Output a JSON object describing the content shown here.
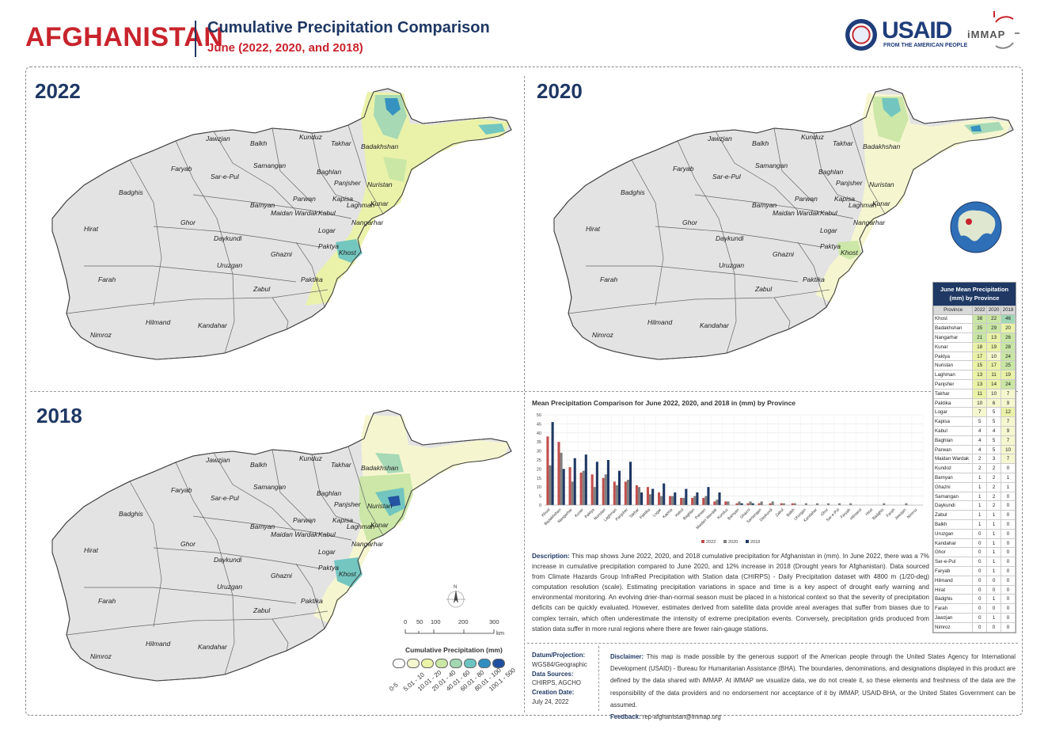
{
  "header": {
    "country": "AFGHANISTAN",
    "title": "Cumulative Precipitation Comparison",
    "subtitle": "June (2022, 2020, and 2018)"
  },
  "logos": {
    "usaid": "USAID",
    "usaid_tagline": "FROM THE AMERICAN PEOPLE",
    "immap": "iMMAP"
  },
  "maps": {
    "year_a": "2022",
    "year_b": "2020",
    "year_c": "2018"
  },
  "provinces": [
    "Jawzjan",
    "Balkh",
    "Kunduz",
    "Takhar",
    "Badakhshan",
    "Faryab",
    "Samangan",
    "Baghlan",
    "Sar-e-Pul",
    "Panjsher",
    "Nuristan",
    "Badghis",
    "Bamyan",
    "Parwan",
    "Kapisa",
    "Kunar",
    "Maidan Wardak",
    "Kabul",
    "Laghman",
    "Hirat",
    "Ghor",
    "Nangarhar",
    "Logar",
    "Daykundi",
    "Paktya",
    "Khost",
    "Ghazni",
    "Uruzgan",
    "Paktika",
    "Farah",
    "Zabul",
    "Hilmand",
    "Kandahar",
    "Nimroz"
  ],
  "table": {
    "title": "June Mean Precipitation (mm) by Province",
    "columns": [
      "Province",
      "2022",
      "2020",
      "2018"
    ],
    "rows": [
      [
        "Khost",
        38,
        22,
        46
      ],
      [
        "Badakhshan",
        35,
        29,
        20
      ],
      [
        "Nangarhar",
        21,
        13,
        26
      ],
      [
        "Kunar",
        18,
        19,
        28
      ],
      [
        "Paktya",
        17,
        10,
        24
      ],
      [
        "Nuristan",
        15,
        17,
        25
      ],
      [
        "Laghman",
        13,
        11,
        19
      ],
      [
        "Panjsher",
        13,
        14,
        24
      ],
      [
        "Takhar",
        11,
        10,
        7
      ],
      [
        "Paktika",
        10,
        6,
        9
      ],
      [
        "Logar",
        7,
        5,
        12
      ],
      [
        "Kapisa",
        5,
        5,
        7
      ],
      [
        "Kabul",
        4,
        4,
        9
      ],
      [
        "Baghlan",
        4,
        5,
        7
      ],
      [
        "Parwan",
        4,
        5,
        10
      ],
      [
        "Maidan Wardak",
        2,
        3,
        7
      ],
      [
        "Kundoz",
        2,
        2,
        0
      ],
      [
        "Bamyan",
        1,
        2,
        1
      ],
      [
        "Ghazni",
        1,
        2,
        1
      ],
      [
        "Samangan",
        1,
        2,
        0
      ],
      [
        "Daykundi",
        1,
        2,
        0
      ],
      [
        "Zabul",
        1,
        1,
        0
      ],
      [
        "Balkh",
        1,
        1,
        0
      ],
      [
        "Uruzgan",
        0,
        1,
        0
      ],
      [
        "Kandahar",
        0,
        1,
        0
      ],
      [
        "Ghor",
        0,
        1,
        0
      ],
      [
        "Sar-e-Pul",
        0,
        1,
        0
      ],
      [
        "Faryab",
        0,
        1,
        0
      ],
      [
        "Hilmand",
        0,
        0,
        0
      ],
      [
        "Hirat",
        0,
        0,
        0
      ],
      [
        "Badghis",
        0,
        1,
        0
      ],
      [
        "Farah",
        0,
        0,
        0
      ],
      [
        "Jawzjan",
        0,
        1,
        0
      ],
      [
        "Nimroz",
        0,
        0,
        0
      ]
    ]
  },
  "chart_data": {
    "type": "bar",
    "title": "Mean Precipitation Comparison for June 2022, 2020, and 2018 in (mm) by Province",
    "categories": [
      "Khost",
      "Badakhshan",
      "Nangarhar",
      "Kunar",
      "Paktya",
      "Nuristan",
      "Laghman",
      "Panjsher",
      "Takhar",
      "Paktika",
      "Logar",
      "Kapisa",
      "Kabul",
      "Baghlan",
      "Parwan",
      "Maidan Wardak",
      "Kunduz",
      "Bamyan",
      "Ghazni",
      "Samangan",
      "Daykundi",
      "Zabul",
      "Balkh",
      "Uruzgan",
      "Kandahar",
      "Ghor",
      "Sar-e-Pul",
      "Faryab",
      "Hilmand",
      "Hirat",
      "Badghis",
      "Farah",
      "Jawzjan",
      "Nimroz"
    ],
    "series": [
      {
        "name": "2022",
        "color": "#c0504d",
        "values": [
          38,
          35,
          21,
          18,
          17,
          15,
          13,
          13,
          11,
          10,
          7,
          5,
          4,
          4,
          4,
          2,
          2,
          1,
          1,
          1,
          1,
          1,
          1,
          0,
          0,
          0,
          0,
          0,
          0,
          0,
          0,
          0,
          0,
          0
        ]
      },
      {
        "name": "2020",
        "color": "#808080",
        "values": [
          22,
          29,
          13,
          19,
          10,
          17,
          11,
          14,
          10,
          6,
          5,
          5,
          4,
          5,
          5,
          3,
          2,
          2,
          2,
          2,
          2,
          1,
          1,
          1,
          1,
          1,
          1,
          1,
          0,
          0,
          1,
          0,
          1,
          0
        ]
      },
      {
        "name": "2018",
        "color": "#1f3864",
        "values": [
          46,
          20,
          26,
          28,
          24,
          25,
          19,
          24,
          7,
          9,
          12,
          7,
          9,
          7,
          10,
          7,
          0,
          1,
          1,
          0,
          0,
          0,
          0,
          0,
          0,
          0,
          0,
          0,
          0,
          0,
          0,
          0,
          0,
          0
        ]
      }
    ],
    "yticks": [
      0,
      5,
      10,
      15,
      20,
      25,
      30,
      35,
      40,
      45,
      50
    ],
    "ylim": [
      0,
      50
    ],
    "legend": "bottom"
  },
  "description": {
    "label": "Description:",
    "text": "This map shows June 2022, 2020, and 2018 cumulative precipitation for Afghanistan in (mm). In June 2022, there was a 7% increase in cumulative precipitation compared to June 2020, and 12% increase in 2018 (Drought years for Afghanistan). Data sourced from Climate Hazards Group InfraRed Precipitation with Station data (CHIRPS) - Daily Precipitation dataset with 4800 m (1/20-deg) computation resolution (scale). Estimating precipitation variations in space and time is a key aspect of drought early warning and environmental monitoring. An evolving drier-than-normal season must be placed in a historical context so that the severity of precipitation deficits can be quickly evaluated. However, estimates derived from satellite data provide areal averages that suffer from biases due to complex terrain, which often underestimate the intensity of extreme precipitation events. Conversely, precipitation grids produced from station data suffer in more rural regions where there are fewer rain-gauge stations."
  },
  "scale": {
    "ticks": [
      "0",
      "50",
      "100",
      "200",
      "300"
    ],
    "unit": "km",
    "north": "N"
  },
  "legend": {
    "title": "Cumulative Precipitation (mm)",
    "classes": [
      {
        "label": "0-5",
        "color": "#ffffff"
      },
      {
        "label": "5.01 - 10",
        "color": "#f5f7cf"
      },
      {
        "label": "10.01 - 20",
        "color": "#eaf2a7"
      },
      {
        "label": "20.01 - 40",
        "color": "#c9e6a4"
      },
      {
        "label": "40.01 - 60",
        "color": "#a2d7b4"
      },
      {
        "label": "60.01 - 80",
        "color": "#6dc4c0"
      },
      {
        "label": "80.01 - 100",
        "color": "#2f8ec0"
      },
      {
        "label": "100.1 - 500",
        "color": "#1f4fa0"
      }
    ]
  },
  "footer": {
    "datum_label": "Datum/Projection:",
    "datum": "WGS84/Geographic",
    "sources_label": "Data Sources:",
    "sources": "CHIRPS, AGCHO",
    "date_label": "Creation Date:",
    "date": "July 24, 2022",
    "disclaimer_label": "Disclaimer:",
    "disclaimer": "This map is made possible by the generous support of the American people through the United States Agency for International Development (USAID) - Bureau for Humanitarian Assistance (BHA). The boundaries, denominations, and designations displayed in this product are defined by the data shared with iMMAP. At iMMAP we visualize data, we do not create it, so these elements and freshness of the data are the responsibility of the data providers and no endorsement nor acceptance of it by iMMAP, USAID-BHA, or the United States Government can be assumed.",
    "feedback_label": "Feedback:",
    "feedback": "rep-afghanistan@immap.org"
  }
}
